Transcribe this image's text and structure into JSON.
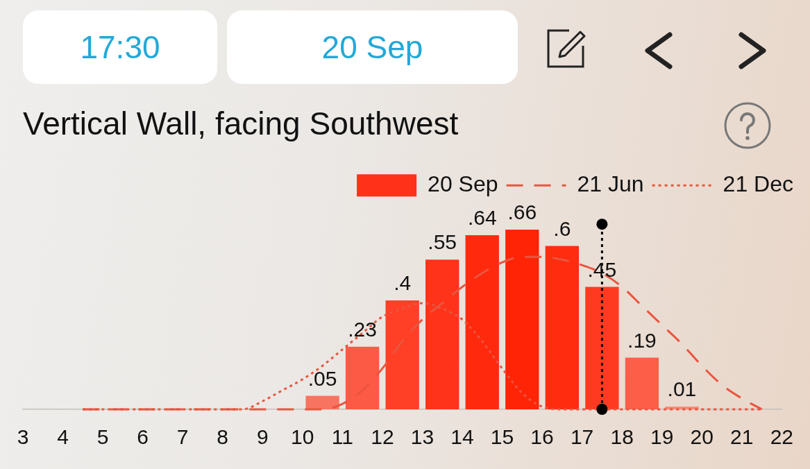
{
  "chart_data": {
    "type": "bar",
    "title": "Vertical Wall, facing Southwest",
    "annotations": [
      "17:30",
      "20 Sep"
    ],
    "series": [
      {
        "name": "20 Sep",
        "color": "#ff3118",
        "x": [
          10.5,
          11.5,
          12.5,
          13.5,
          14.5,
          15.5,
          16.5,
          17.5,
          18.5,
          19.5
        ],
        "values": [
          0.05,
          0.23,
          0.4,
          0.55,
          0.64,
          0.66,
          0.6,
          0.45,
          0.19,
          0.01
        ],
        "colors": [
          "#f97460",
          "#fc5a44",
          "#ff4027",
          "#ff331a",
          "#ff2a0e",
          "#ff2405",
          "#ff2c10",
          "#ff3a20",
          "#fc5e48",
          "#f98a78"
        ],
        "value_labels": [
          ".05",
          ".23",
          ".4",
          ".55",
          ".64",
          ".66",
          ".6",
          ".45",
          ".19",
          ".01"
        ]
      },
      {
        "name": "21 Jun",
        "type": "line",
        "color": "#e9553f",
        "line_style": "dashed",
        "x": [
          4.5,
          10.5,
          11,
          11.5,
          12,
          12.5,
          13,
          13.5,
          14,
          14.5,
          15,
          15.5,
          16,
          16.5,
          17,
          17.5,
          18,
          18.5,
          19,
          19.5,
          20,
          20.5,
          21,
          21.5
        ],
        "values": [
          0,
          0,
          0.02,
          0.07,
          0.15,
          0.25,
          0.33,
          0.39,
          0.45,
          0.5,
          0.54,
          0.56,
          0.56,
          0.55,
          0.53,
          0.5,
          0.45,
          0.38,
          0.31,
          0.24,
          0.16,
          0.09,
          0.04,
          0
        ]
      },
      {
        "name": "21 Dec",
        "type": "line",
        "color": "#e9553f",
        "line_style": "dotted",
        "x": [
          4.5,
          8.5,
          9,
          9.5,
          10,
          10.5,
          11,
          11.5,
          12,
          12.5,
          13,
          13.5,
          14,
          14.5,
          15,
          15.5,
          16,
          16.5,
          21.5
        ],
        "values": [
          0,
          0,
          0.03,
          0.07,
          0.11,
          0.16,
          0.22,
          0.28,
          0.34,
          0.37,
          0.39,
          0.37,
          0.33,
          0.25,
          0.15,
          0.06,
          0.01,
          0,
          0
        ]
      },
      {
        "type": "line",
        "color": "#000000",
        "line_style": "dotted",
        "marker": "circle",
        "x": [
          17.5,
          17.5
        ],
        "values": [
          0,
          0.68
        ]
      }
    ],
    "xlim": [
      3,
      22
    ],
    "xticks": [
      3,
      4,
      5,
      6,
      7,
      8,
      9,
      10,
      11,
      12,
      13,
      14,
      15,
      16,
      17,
      18,
      19,
      20,
      21,
      22
    ],
    "ylim": [
      0,
      0.68
    ],
    "legend": "top right",
    "marker": "none",
    "tick_labels": "x"
  }
}
